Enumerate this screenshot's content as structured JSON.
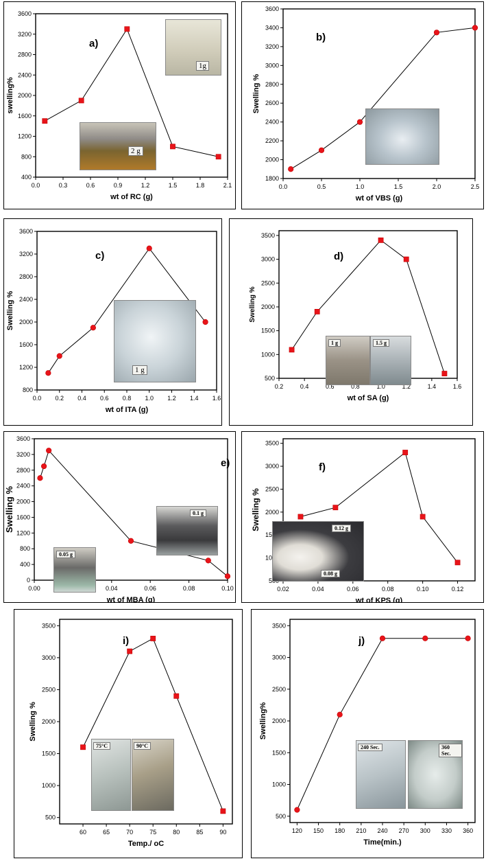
{
  "chart_data": [
    {
      "type": "line",
      "panel_label": "a)",
      "xlabel": "wt of RC (g)",
      "ylabel": "swelling%",
      "xlim": [
        0.0,
        2.1
      ],
      "ylim": [
        400,
        3600
      ],
      "xticks": [
        "0.0",
        "0.3",
        "0.6",
        "0.9",
        "1.2",
        "1.5",
        "1.8",
        "2.1"
      ],
      "yticks": [
        "400",
        "800",
        "1200",
        "1600",
        "2000",
        "2400",
        "2800",
        "3200",
        "3600"
      ],
      "marker": "square",
      "x": [
        0.1,
        0.5,
        1.0,
        1.5,
        2.0
      ],
      "y": [
        1500,
        1900,
        3300,
        1000,
        800
      ],
      "photo_labels": [
        "1g",
        "2 g"
      ]
    },
    {
      "type": "line",
      "panel_label": "b)",
      "xlabel": "wt of VBS (g)",
      "ylabel": "Swelling %",
      "xlim": [
        0.0,
        2.5
      ],
      "ylim": [
        1800,
        3600
      ],
      "xticks": [
        "0.0",
        "0.5",
        "1.0",
        "1.5",
        "2.0",
        "2.5"
      ],
      "yticks": [
        "1800",
        "2000",
        "2200",
        "2400",
        "2600",
        "2800",
        "3000",
        "3200",
        "3400",
        "3600"
      ],
      "marker": "circle",
      "x": [
        0.1,
        0.5,
        1.0,
        2.0,
        2.5
      ],
      "y": [
        1900,
        2100,
        2400,
        3350,
        3400
      ],
      "photo_labels": []
    },
    {
      "type": "line",
      "panel_label": "c)",
      "xlabel": "wt of ITA (g)",
      "ylabel": "Swelling %",
      "xlim": [
        0.0,
        1.6
      ],
      "ylim": [
        800,
        3600
      ],
      "xticks": [
        "0.0",
        "0.2",
        "0.4",
        "0.6",
        "0.8",
        "1.0",
        "1.2",
        "1.4",
        "1.6"
      ],
      "yticks": [
        "800",
        "1200",
        "1600",
        "2000",
        "2400",
        "2800",
        "3200",
        "3600"
      ],
      "marker": "circle",
      "x": [
        0.1,
        0.2,
        0.5,
        1.0,
        1.5
      ],
      "y": [
        1100,
        1400,
        1900,
        3300,
        2000
      ],
      "photo_labels": [
        "1 g"
      ]
    },
    {
      "type": "line",
      "panel_label": "d)",
      "xlabel": "wt of SA (g)",
      "ylabel": "Swelling %",
      "xlim": [
        0.2,
        1.6
      ],
      "ylim": [
        500,
        3600
      ],
      "xticks": [
        "0.2",
        "0.4",
        "0.6",
        "0.8",
        "1.0",
        "1.2",
        "1.4",
        "1.6"
      ],
      "yticks": [
        "500",
        "1000",
        "1500",
        "2000",
        "2500",
        "3000",
        "3500"
      ],
      "marker": "square",
      "x": [
        0.3,
        0.5,
        1.0,
        1.2,
        1.5
      ],
      "y": [
        1100,
        1900,
        3400,
        3000,
        600
      ],
      "photo_labels": [
        "1 g",
        "1.5 g"
      ]
    },
    {
      "type": "line",
      "panel_label": "e)",
      "xlabel": "wt of MBA (g)",
      "ylabel": "Swelling %",
      "xlim": [
        0.0,
        0.1
      ],
      "ylim": [
        0,
        3600
      ],
      "xticks": [
        "0.00",
        "0.02",
        "0.04",
        "0.06",
        "0.08",
        "0.10"
      ],
      "yticks": [
        "0",
        "400",
        "800",
        "1200",
        "1600",
        "2000",
        "2400",
        "2800",
        "3200",
        "3600"
      ],
      "marker": "circle",
      "x": [
        0.003,
        0.005,
        0.0075,
        0.05,
        0.09,
        0.1
      ],
      "y": [
        2600,
        2900,
        3300,
        1000,
        500,
        100
      ],
      "photo_labels": [
        "0.1 g",
        "0.05 g"
      ]
    },
    {
      "type": "line",
      "panel_label": "f)",
      "xlabel": "wt of KPS (g)",
      "ylabel": "Swelling %",
      "xlim": [
        0.02,
        0.13
      ],
      "ylim": [
        500,
        3600
      ],
      "xticks": [
        "0.02",
        "0.04",
        "0.06",
        "0.08",
        "0.10",
        "0.12"
      ],
      "yticks": [
        "500",
        "1000",
        "1500",
        "2000",
        "2500",
        "3000",
        "3500"
      ],
      "marker": "square",
      "x": [
        0.03,
        0.05,
        0.09,
        0.1,
        0.12
      ],
      "y": [
        1900,
        2100,
        3300,
        1900,
        900
      ],
      "photo_labels": [
        "0.12 g",
        "0.08 g"
      ]
    },
    {
      "type": "line",
      "panel_label": "i)",
      "xlabel": "Temp./ oC",
      "ylabel": "Swelling %",
      "xlim": [
        55,
        92
      ],
      "ylim": [
        400,
        3600
      ],
      "xticks": [
        "60",
        "65",
        "70",
        "75",
        "80",
        "85",
        "90"
      ],
      "yticks": [
        "500",
        "1000",
        "1500",
        "2000",
        "2500",
        "3000",
        "3500"
      ],
      "marker": "square",
      "x": [
        60,
        70,
        75,
        80,
        90
      ],
      "y": [
        1600,
        3100,
        3300,
        2400,
        600
      ],
      "photo_labels": [
        "75°C",
        "90°C"
      ]
    },
    {
      "type": "line",
      "panel_label": "j)",
      "xlabel": "Time(min.)",
      "ylabel": "Swelling%",
      "xlim": [
        110,
        370
      ],
      "ylim": [
        400,
        3600
      ],
      "xticks": [
        "120",
        "150",
        "180",
        "210",
        "240",
        "270",
        "300",
        "330",
        "360"
      ],
      "yticks": [
        "500",
        "1000",
        "1500",
        "2000",
        "2500",
        "3000",
        "3500"
      ],
      "marker": "circle",
      "x": [
        120,
        180,
        240,
        300,
        360
      ],
      "y": [
        600,
        2100,
        3300,
        3300,
        3300
      ],
      "photo_labels": [
        "240 Sec.",
        "360 Sec."
      ]
    }
  ]
}
